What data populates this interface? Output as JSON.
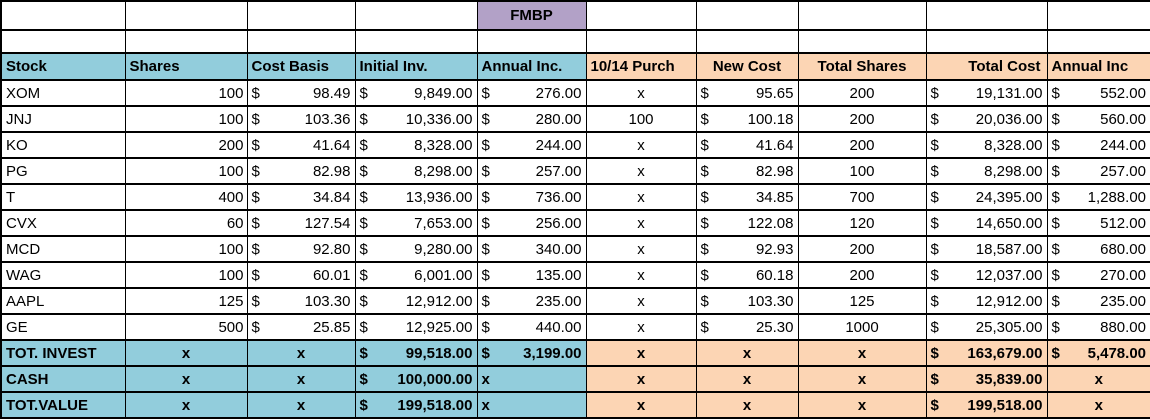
{
  "colors": {
    "header_left_bg": "#92CDDC",
    "header_right_bg": "#FCD5B4",
    "banner_bg": "#B2A1C7",
    "grid": "#000000"
  },
  "banner": {
    "label": "FMBP",
    "column_index": 4
  },
  "columns": [
    {
      "key": "stock",
      "label": "Stock",
      "width": 124,
      "section": "left",
      "header_align": "left",
      "body_type": "text"
    },
    {
      "key": "shares",
      "label": "Shares",
      "width": 122,
      "section": "left",
      "header_align": "left",
      "body_type": "right"
    },
    {
      "key": "cost-basis",
      "label": "Cost Basis",
      "width": 108,
      "section": "left",
      "header_align": "left",
      "body_type": "money"
    },
    {
      "key": "initial-inv",
      "label": "Initial Inv.",
      "width": 122,
      "section": "left",
      "header_align": "left",
      "body_type": "money"
    },
    {
      "key": "annual-inc",
      "label": "Annual Inc.",
      "width": 109,
      "section": "left",
      "header_align": "left",
      "body_type": "money"
    },
    {
      "key": "purch-10-14",
      "label": "10/14 Purch",
      "width": 110,
      "section": "right",
      "header_align": "left",
      "body_type": "center"
    },
    {
      "key": "new-cost",
      "label": "New Cost",
      "width": 102,
      "section": "right",
      "header_align": "center",
      "body_type": "money"
    },
    {
      "key": "total-shares",
      "label": "Total Shares",
      "width": 128,
      "section": "right",
      "header_align": "center",
      "body_type": "center"
    },
    {
      "key": "total-cost",
      "label": "Total Cost",
      "width": 121,
      "section": "right",
      "header_align": "right",
      "body_type": "money"
    },
    {
      "key": "annual-inc-2",
      "label": "Annual Inc",
      "width": 104,
      "section": "right",
      "header_align": "left",
      "body_type": "money"
    }
  ],
  "stocks": [
    [
      "XOM",
      "100",
      "98.49",
      "9,849.00",
      "276.00",
      "x",
      "95.65",
      "200",
      "19,131.00",
      "552.00"
    ],
    [
      "JNJ",
      "100",
      "103.36",
      "10,336.00",
      "280.00",
      "100",
      "100.18",
      "200",
      "20,036.00",
      "560.00"
    ],
    [
      "KO",
      "200",
      "41.64",
      "8,328.00",
      "244.00",
      "x",
      "41.64",
      "200",
      "8,328.00",
      "244.00"
    ],
    [
      "PG",
      "100",
      "82.98",
      "8,298.00",
      "257.00",
      "x",
      "82.98",
      "100",
      "8,298.00",
      "257.00"
    ],
    [
      "T",
      "400",
      "34.84",
      "13,936.00",
      "736.00",
      "x",
      "34.85",
      "700",
      "24,395.00",
      "1,288.00"
    ],
    [
      "CVX",
      "60",
      "127.54",
      "7,653.00",
      "256.00",
      "x",
      "122.08",
      "120",
      "14,650.00",
      "512.00"
    ],
    [
      "MCD",
      "100",
      "92.80",
      "9,280.00",
      "340.00",
      "x",
      "92.93",
      "200",
      "18,587.00",
      "680.00"
    ],
    [
      "WAG",
      "100",
      "60.01",
      "6,001.00",
      "135.00",
      "x",
      "60.18",
      "200",
      "12,037.00",
      "270.00"
    ],
    [
      "AAPL",
      "125",
      "103.30",
      "12,912.00",
      "235.00",
      "x",
      "103.30",
      "125",
      "12,912.00",
      "235.00"
    ],
    [
      "GE",
      "500",
      "25.85",
      "12,925.00",
      "440.00",
      "x",
      "25.30",
      "1000",
      "25,305.00",
      "880.00"
    ]
  ],
  "totals": [
    {
      "label": "TOT. INVEST",
      "cells": [
        {
          "t": "text",
          "v": "TOT. INVEST"
        },
        {
          "t": "center",
          "v": "x"
        },
        {
          "t": "center",
          "v": "x"
        },
        {
          "t": "money",
          "v": "99,518.00"
        },
        {
          "t": "money",
          "v": "3,199.00"
        },
        {
          "t": "center",
          "v": "x"
        },
        {
          "t": "center",
          "v": "x"
        },
        {
          "t": "center",
          "v": "x"
        },
        {
          "t": "money",
          "v": "163,679.00"
        },
        {
          "t": "money",
          "v": "5,478.00"
        }
      ]
    },
    {
      "label": "CASH",
      "cells": [
        {
          "t": "text",
          "v": "CASH"
        },
        {
          "t": "center",
          "v": "x"
        },
        {
          "t": "center",
          "v": "x"
        },
        {
          "t": "money",
          "v": "100,000.00"
        },
        {
          "t": "text",
          "v": "x"
        },
        {
          "t": "center",
          "v": "x"
        },
        {
          "t": "center",
          "v": "x"
        },
        {
          "t": "center",
          "v": "x"
        },
        {
          "t": "money",
          "v": "35,839.00"
        },
        {
          "t": "center",
          "v": "x"
        }
      ]
    },
    {
      "label": "TOT.VALUE",
      "cells": [
        {
          "t": "text",
          "v": "TOT.VALUE"
        },
        {
          "t": "center",
          "v": "x"
        },
        {
          "t": "center",
          "v": "x"
        },
        {
          "t": "money",
          "v": "199,518.00"
        },
        {
          "t": "text",
          "v": "x"
        },
        {
          "t": "center",
          "v": "x"
        },
        {
          "t": "center",
          "v": "x"
        },
        {
          "t": "center",
          "v": "x"
        },
        {
          "t": "money",
          "v": "199,518.00"
        },
        {
          "t": "center",
          "v": "x"
        }
      ]
    }
  ],
  "currency_symbol": "$"
}
